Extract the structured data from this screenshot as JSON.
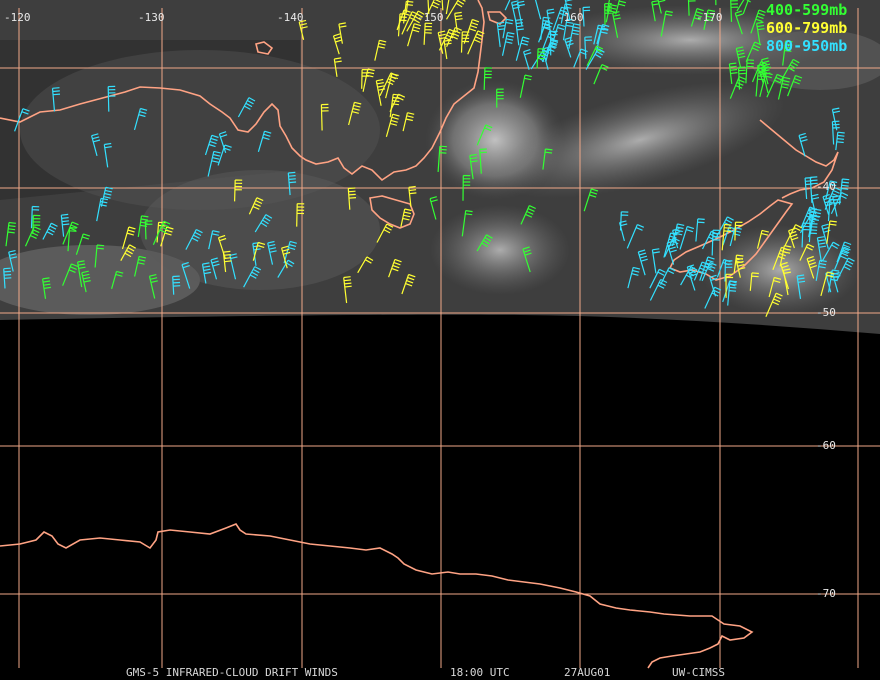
{
  "colors": {
    "grid": "#f0a888",
    "coast": "#ffa384",
    "band_400_599": "#33ff33",
    "band_600_799": "#ffff33",
    "band_800_950": "#33e0ff"
  },
  "longitude_labels": [
    "-120",
    "-130",
    "-140",
    "-150",
    "-160",
    "-170"
  ],
  "latitude_labels": [
    "-40",
    "-50",
    "-60",
    "-70"
  ],
  "legend": [
    {
      "label": "400-599mb",
      "color_key": "band_400_599"
    },
    {
      "label": "600-799mb",
      "color_key": "band_600_799"
    },
    {
      "label": "800-950mb",
      "color_key": "band_800_950"
    }
  ],
  "footer": {
    "product": "GMS-5 INFRARED-CLOUD DRIFT WINDS",
    "time": "18:00 UTC",
    "date": "27AUG01",
    "source": "UW-CIMSS"
  }
}
